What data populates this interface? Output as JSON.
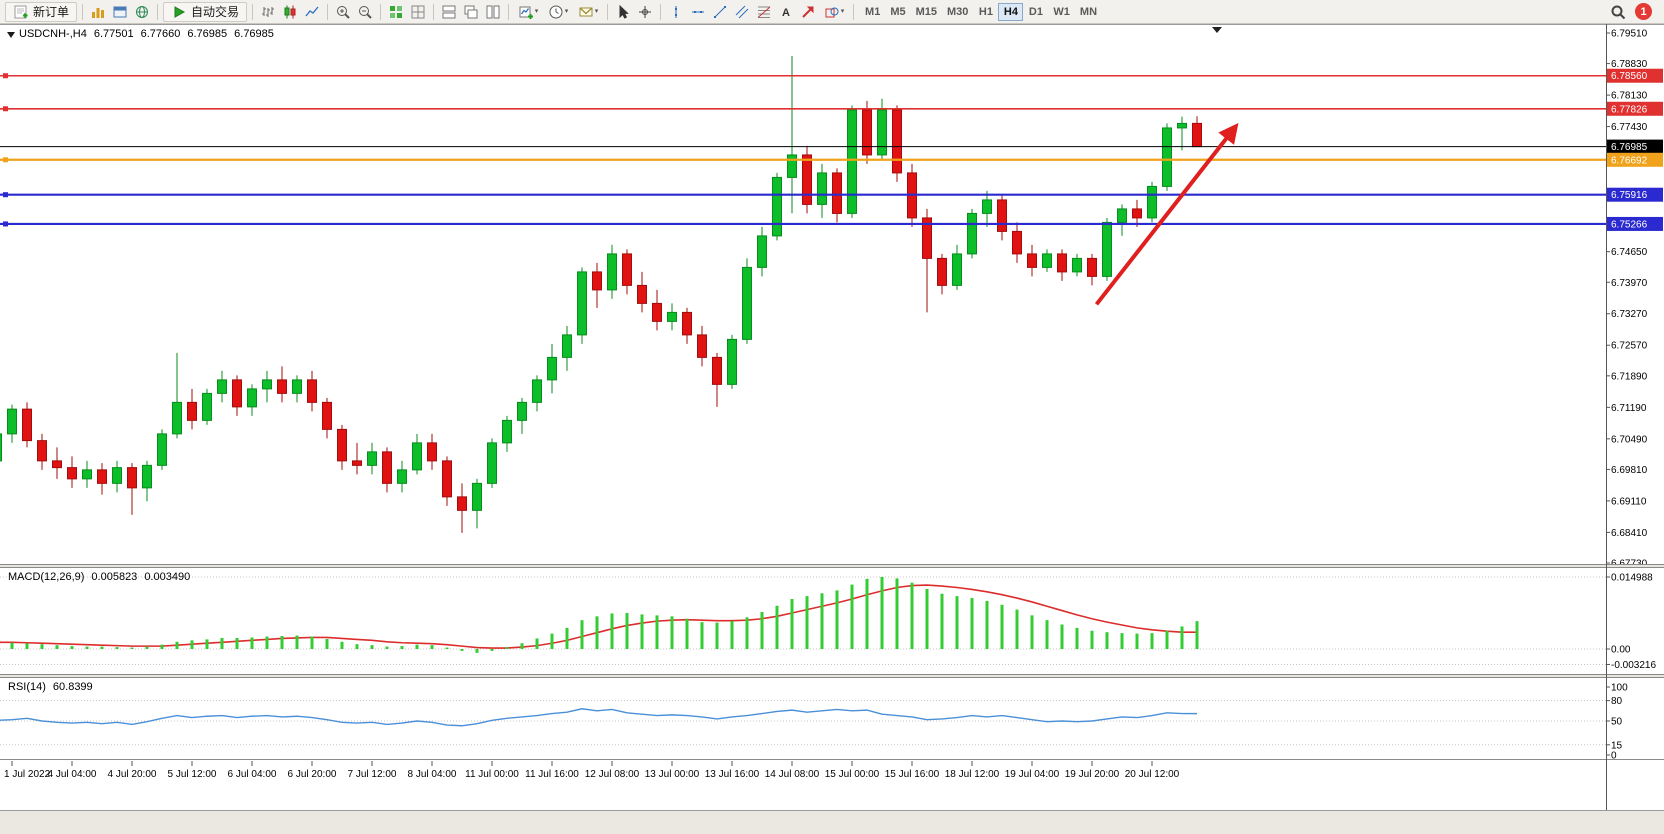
{
  "toolbar": {
    "new_order": {
      "label": "新订单"
    },
    "auto_trading": {
      "label": "自动交易"
    },
    "icon_groups": [
      {
        "type": "button",
        "name": "new-order-button",
        "icon": "new-order",
        "label": "新订单"
      },
      {
        "type": "sep"
      },
      {
        "type": "icons",
        "items": [
          "market-watch",
          "data-window",
          "navigator"
        ]
      },
      {
        "type": "sep"
      },
      {
        "type": "button",
        "name": "auto-trading-button",
        "icon": "autotrade-play",
        "label": "自动交易"
      },
      {
        "type": "sep"
      },
      {
        "type": "icons",
        "items": [
          "bar-chart-mode",
          "candlestick-mode",
          "line-chart-mode"
        ]
      },
      {
        "type": "sep"
      },
      {
        "type": "icons",
        "items": [
          "zoom-in",
          "zoom-out"
        ]
      },
      {
        "type": "sep"
      },
      {
        "type": "icons",
        "items": [
          "indicators",
          "grid"
        ]
      },
      {
        "type": "sep"
      },
      {
        "type": "icons",
        "items": [
          "tile-windows",
          "cascade-windows",
          "arrange-windows"
        ]
      },
      {
        "type": "sep"
      },
      {
        "type": "icons",
        "items": [
          "new-chart",
          "timeframe-clock",
          "alerts-mail"
        ],
        "caret": true
      },
      {
        "type": "sep"
      },
      {
        "type": "icons",
        "items": [
          "cursor",
          "crosshair"
        ]
      },
      {
        "type": "sep"
      },
      {
        "type": "icons",
        "items": [
          "vertical-line",
          "horizontal-line",
          "trendline",
          "channel",
          "fibonacci",
          "text-label",
          "arrow-object"
        ]
      },
      {
        "type": "icons",
        "items": [
          "shapes"
        ],
        "caret": true
      },
      {
        "type": "sep"
      },
      {
        "type": "timeframes"
      }
    ],
    "timeframes": {
      "items": [
        "M1",
        "M5",
        "M15",
        "M30",
        "H1",
        "H4",
        "D1",
        "W1",
        "MN"
      ],
      "active": "H4"
    },
    "notification": {
      "count": "1"
    }
  },
  "chart": {
    "symbol_period": "USDCNH-,H4",
    "open": "6.77501",
    "high": "6.77660",
    "low": "6.76985",
    "close": "6.76985"
  },
  "price_axis": {
    "labels": [
      "6.79510",
      "6.78830",
      "6.78130",
      "6.77430",
      "6.74650",
      "6.73970",
      "6.73270",
      "6.72570",
      "6.71890",
      "6.71190",
      "6.70490",
      "6.69810",
      "6.69110",
      "6.68410",
      "6.67730"
    ]
  },
  "levels": [
    {
      "name": "resistance-line-upper",
      "text": "6.78560",
      "value": 6.7856,
      "color": "#e03030",
      "width": 1.6
    },
    {
      "name": "resistance-line-lower",
      "text": "6.77826",
      "value": 6.77826,
      "color": "#e03030",
      "width": 1.6
    },
    {
      "name": "bid-price-line",
      "text": "6.76985",
      "value": 6.76985,
      "color": "#000000",
      "width": 1
    },
    {
      "name": "pivot-line",
      "text": "6.76692",
      "value": 6.76692,
      "color": "#efa21a",
      "width": 2.2
    },
    {
      "name": "support-line-upper",
      "text": "6.75916",
      "value": 6.75916,
      "color": "#2a2ad0",
      "width": 2.2
    },
    {
      "name": "support-line-lower",
      "text": "6.75266",
      "value": 6.75266,
      "color": "#2a2ad0",
      "width": 2.2
    }
  ],
  "macd": {
    "label": "MACD(12,26,9)",
    "value_main": "0.005823",
    "value_signal": "0.003490",
    "axis": [
      {
        "text": "0.014988",
        "value": 0.014988
      },
      {
        "text": "0.00",
        "value": 0
      },
      {
        "text": "-0.003216",
        "value": -0.003216
      }
    ]
  },
  "rsi": {
    "label": "RSI(14)",
    "value": "60.8399",
    "axis": [
      {
        "text": "100",
        "value": 100
      },
      {
        "text": "80",
        "value": 80
      },
      {
        "text": "50",
        "value": 50
      },
      {
        "text": "15",
        "value": 15
      },
      {
        "text": "0",
        "value": 0
      }
    ],
    "levels": [
      80,
      50,
      15
    ]
  },
  "time_axis": {
    "labels": [
      "1 Jul 2022",
      "4 Jul 04:00",
      "4 Jul 20:00",
      "5 Jul 12:00",
      "6 Jul 04:00",
      "6 Jul 20:00",
      "7 Jul 12:00",
      "8 Jul 04:00",
      "11 Jul 00:00",
      "11 Jul 16:00",
      "12 Jul 08:00",
      "13 Jul 00:00",
      "13 Jul 16:00",
      "14 Jul 08:00",
      "15 Jul 00:00",
      "15 Jul 16:00",
      "18 Jul 12:00",
      "19 Jul 04:00",
      "19 Jul 20:00",
      "20 Jul 12:00"
    ],
    "bar_indices": [
      1,
      5,
      9,
      13,
      17,
      21,
      25,
      29,
      33,
      37,
      41,
      45,
      49,
      53,
      57,
      61,
      65,
      69,
      73,
      77
    ]
  },
  "annotations": {
    "trend_arrow": {
      "name": "trend-arrow",
      "color": "#e01f1f",
      "from_bar": 73.3,
      "from_price": 6.7348,
      "to_bar": 82.6,
      "to_price": 6.7744
    }
  },
  "chart_data": {
    "type": "candlestick",
    "symbol": "USDCNH-",
    "period": "H4",
    "y_range": [
      6.6773,
      6.7951
    ],
    "up_fill": "#0cbe2a",
    "up_stroke": "#078c1e",
    "down_fill": "#e11212",
    "down_stroke": "#a30c0c",
    "macd_color": "#33cc33",
    "macd_signal_color": "#dd2c2c",
    "rsi_color": "#4a90d8",
    "candles": [
      [
        6.7,
        6.707,
        6.699,
        6.706
      ],
      [
        6.706,
        6.7125,
        6.704,
        6.7115
      ],
      [
        6.7115,
        6.713,
        6.703,
        6.7045
      ],
      [
        6.7045,
        6.706,
        6.698,
        6.7
      ],
      [
        6.7,
        6.703,
        6.696,
        6.6985
      ],
      [
        6.6985,
        6.701,
        6.694,
        6.696
      ],
      [
        6.696,
        6.7,
        6.694,
        6.698
      ],
      [
        6.698,
        6.6995,
        6.6925,
        6.695
      ],
      [
        6.695,
        6.7,
        6.693,
        6.6985
      ],
      [
        6.6985,
        6.6995,
        6.688,
        6.694
      ],
      [
        6.694,
        6.7,
        6.691,
        6.699
      ],
      [
        6.699,
        6.707,
        6.698,
        6.706
      ],
      [
        6.706,
        6.724,
        6.705,
        6.713
      ],
      [
        6.713,
        6.716,
        6.707,
        6.709
      ],
      [
        6.709,
        6.716,
        6.708,
        6.715
      ],
      [
        6.715,
        6.72,
        6.713,
        6.718
      ],
      [
        6.718,
        6.719,
        6.71,
        6.712
      ],
      [
        6.712,
        6.717,
        6.71,
        6.716
      ],
      [
        6.716,
        6.72,
        6.713,
        6.718
      ],
      [
        6.718,
        6.721,
        6.713,
        6.715
      ],
      [
        6.715,
        6.719,
        6.713,
        6.718
      ],
      [
        6.718,
        6.72,
        6.711,
        6.713
      ],
      [
        6.713,
        6.714,
        6.705,
        6.707
      ],
      [
        6.707,
        6.708,
        6.698,
        6.7
      ],
      [
        6.7,
        6.704,
        6.697,
        6.699
      ],
      [
        6.699,
        6.704,
        6.697,
        6.702
      ],
      [
        6.702,
        6.703,
        6.693,
        6.695
      ],
      [
        6.695,
        6.7,
        6.693,
        6.698
      ],
      [
        6.698,
        6.706,
        6.697,
        6.704
      ],
      [
        6.704,
        6.706,
        6.698,
        6.7
      ],
      [
        6.7,
        6.701,
        6.69,
        6.692
      ],
      [
        6.692,
        6.695,
        6.684,
        6.689
      ],
      [
        6.689,
        6.696,
        6.685,
        6.695
      ],
      [
        6.695,
        6.705,
        6.694,
        6.704
      ],
      [
        6.704,
        6.71,
        6.702,
        6.709
      ],
      [
        6.709,
        6.714,
        6.706,
        6.713
      ],
      [
        6.713,
        6.719,
        6.711,
        6.718
      ],
      [
        6.718,
        6.726,
        6.715,
        6.723
      ],
      [
        6.723,
        6.73,
        6.72,
        6.728
      ],
      [
        6.728,
        6.743,
        6.726,
        6.742
      ],
      [
        6.742,
        6.744,
        6.734,
        6.738
      ],
      [
        6.738,
        6.748,
        6.736,
        6.746
      ],
      [
        6.746,
        6.747,
        6.737,
        6.739
      ],
      [
        6.739,
        6.742,
        6.733,
        6.735
      ],
      [
        6.735,
        6.738,
        6.729,
        6.731
      ],
      [
        6.731,
        6.735,
        6.729,
        6.733
      ],
      [
        6.733,
        6.734,
        6.726,
        6.728
      ],
      [
        6.728,
        6.73,
        6.721,
        6.723
      ],
      [
        6.723,
        6.724,
        6.712,
        6.717
      ],
      [
        6.717,
        6.728,
        6.716,
        6.727
      ],
      [
        6.727,
        6.745,
        6.726,
        6.743
      ],
      [
        6.743,
        6.752,
        6.741,
        6.75
      ],
      [
        6.75,
        6.764,
        6.749,
        6.763
      ],
      [
        6.763,
        6.79,
        6.755,
        6.768
      ],
      [
        6.768,
        6.77,
        6.755,
        6.757
      ],
      [
        6.757,
        6.766,
        6.754,
        6.764
      ],
      [
        6.764,
        6.765,
        6.753,
        6.755
      ],
      [
        6.755,
        6.779,
        6.754,
        6.778
      ],
      [
        6.778,
        6.78,
        6.766,
        6.768
      ],
      [
        6.768,
        6.7805,
        6.767,
        6.778
      ],
      [
        6.778,
        6.779,
        6.762,
        6.764
      ],
      [
        6.764,
        6.766,
        6.752,
        6.754
      ],
      [
        6.754,
        6.756,
        6.733,
        6.745
      ],
      [
        6.745,
        6.746,
        6.737,
        6.739
      ],
      [
        6.739,
        6.748,
        6.738,
        6.746
      ],
      [
        6.746,
        6.756,
        6.745,
        6.755
      ],
      [
        6.755,
        6.76,
        6.752,
        6.758
      ],
      [
        6.758,
        6.759,
        6.749,
        6.751
      ],
      [
        6.751,
        6.753,
        6.744,
        6.746
      ],
      [
        6.746,
        6.748,
        6.741,
        6.743
      ],
      [
        6.743,
        6.747,
        6.742,
        6.746
      ],
      [
        6.746,
        6.747,
        6.74,
        6.742
      ],
      [
        6.742,
        6.746,
        6.741,
        6.745
      ],
      [
        6.745,
        6.746,
        6.739,
        6.741
      ],
      [
        6.741,
        6.754,
        6.74,
        6.753
      ],
      [
        6.753,
        6.757,
        6.75,
        6.756
      ],
      [
        6.756,
        6.758,
        6.752,
        6.754
      ],
      [
        6.754,
        6.762,
        6.753,
        6.761
      ],
      [
        6.761,
        6.775,
        6.76,
        6.774
      ],
      [
        6.774,
        6.7765,
        6.769,
        6.775
      ],
      [
        6.77501,
        6.7766,
        6.76985,
        6.76985
      ]
    ],
    "macd_histogram": [
      0.0012,
      0.0013,
      0.0012,
      0.001,
      0.0008,
      0.0006,
      0.0005,
      0.0005,
      0.0004,
      0.0003,
      0.0005,
      0.0009,
      0.0015,
      0.0018,
      0.002,
      0.0023,
      0.0023,
      0.0024,
      0.0026,
      0.0027,
      0.0028,
      0.0026,
      0.0021,
      0.0015,
      0.001,
      0.0008,
      0.0005,
      0.0006,
      0.0009,
      0.0008,
      0.0003,
      -0.0004,
      -0.0008,
      -0.0004,
      0.0004,
      0.0012,
      0.0022,
      0.0032,
      0.0044,
      0.006,
      0.0068,
      0.0074,
      0.0075,
      0.0072,
      0.007,
      0.0068,
      0.0063,
      0.0056,
      0.0055,
      0.0058,
      0.0066,
      0.0077,
      0.009,
      0.0104,
      0.011,
      0.0116,
      0.0122,
      0.0134,
      0.0146,
      0.015,
      0.0147,
      0.0138,
      0.0125,
      0.0115,
      0.011,
      0.0106,
      0.01,
      0.0092,
      0.0082,
      0.007,
      0.006,
      0.0051,
      0.0044,
      0.0038,
      0.0035,
      0.0033,
      0.0032,
      0.0033,
      0.0038,
      0.0047,
      0.0058
    ],
    "macd_signal": [
      0.0014,
      0.0014,
      0.0013,
      0.0012,
      0.0011,
      0.001,
      0.0009,
      0.0008,
      0.0007,
      0.0006,
      0.0006,
      0.0006,
      0.0008,
      0.001,
      0.0012,
      0.0014,
      0.0016,
      0.0018,
      0.002,
      0.0022,
      0.0023,
      0.0024,
      0.0024,
      0.0022,
      0.002,
      0.0018,
      0.0015,
      0.0013,
      0.0012,
      0.0011,
      0.0009,
      0.0006,
      0.0003,
      0.0002,
      0.0002,
      0.0004,
      0.0007,
      0.0012,
      0.0018,
      0.0026,
      0.0034,
      0.0042,
      0.0049,
      0.0054,
      0.0058,
      0.006,
      0.0061,
      0.006,
      0.0059,
      0.0059,
      0.006,
      0.0063,
      0.0068,
      0.0075,
      0.0082,
      0.0089,
      0.0096,
      0.0104,
      0.0113,
      0.0121,
      0.0128,
      0.0132,
      0.0133,
      0.0131,
      0.0128,
      0.0124,
      0.0119,
      0.0113,
      0.0106,
      0.0098,
      0.0089,
      0.008,
      0.0071,
      0.0063,
      0.0056,
      0.005,
      0.0044,
      0.004,
      0.0037,
      0.0035,
      0.0035
    ],
    "rsi_values": [
      51,
      52,
      54,
      50,
      48,
      47,
      48,
      46,
      48,
      45,
      49,
      54,
      58,
      55,
      57,
      58,
      55,
      57,
      58,
      56,
      57,
      55,
      52,
      48,
      47,
      48,
      45,
      47,
      50,
      48,
      44,
      43,
      46,
      51,
      54,
      56,
      58,
      61,
      63,
      68,
      65,
      67,
      62,
      60,
      58,
      59,
      58,
      56,
      53,
      56,
      58,
      61,
      64,
      66,
      63,
      65,
      67,
      65,
      66,
      60,
      58,
      56,
      52,
      53,
      55,
      58,
      56,
      58,
      55,
      52,
      49,
      50,
      49,
      50,
      53,
      56,
      55,
      58,
      62,
      61,
      60.84
    ]
  }
}
